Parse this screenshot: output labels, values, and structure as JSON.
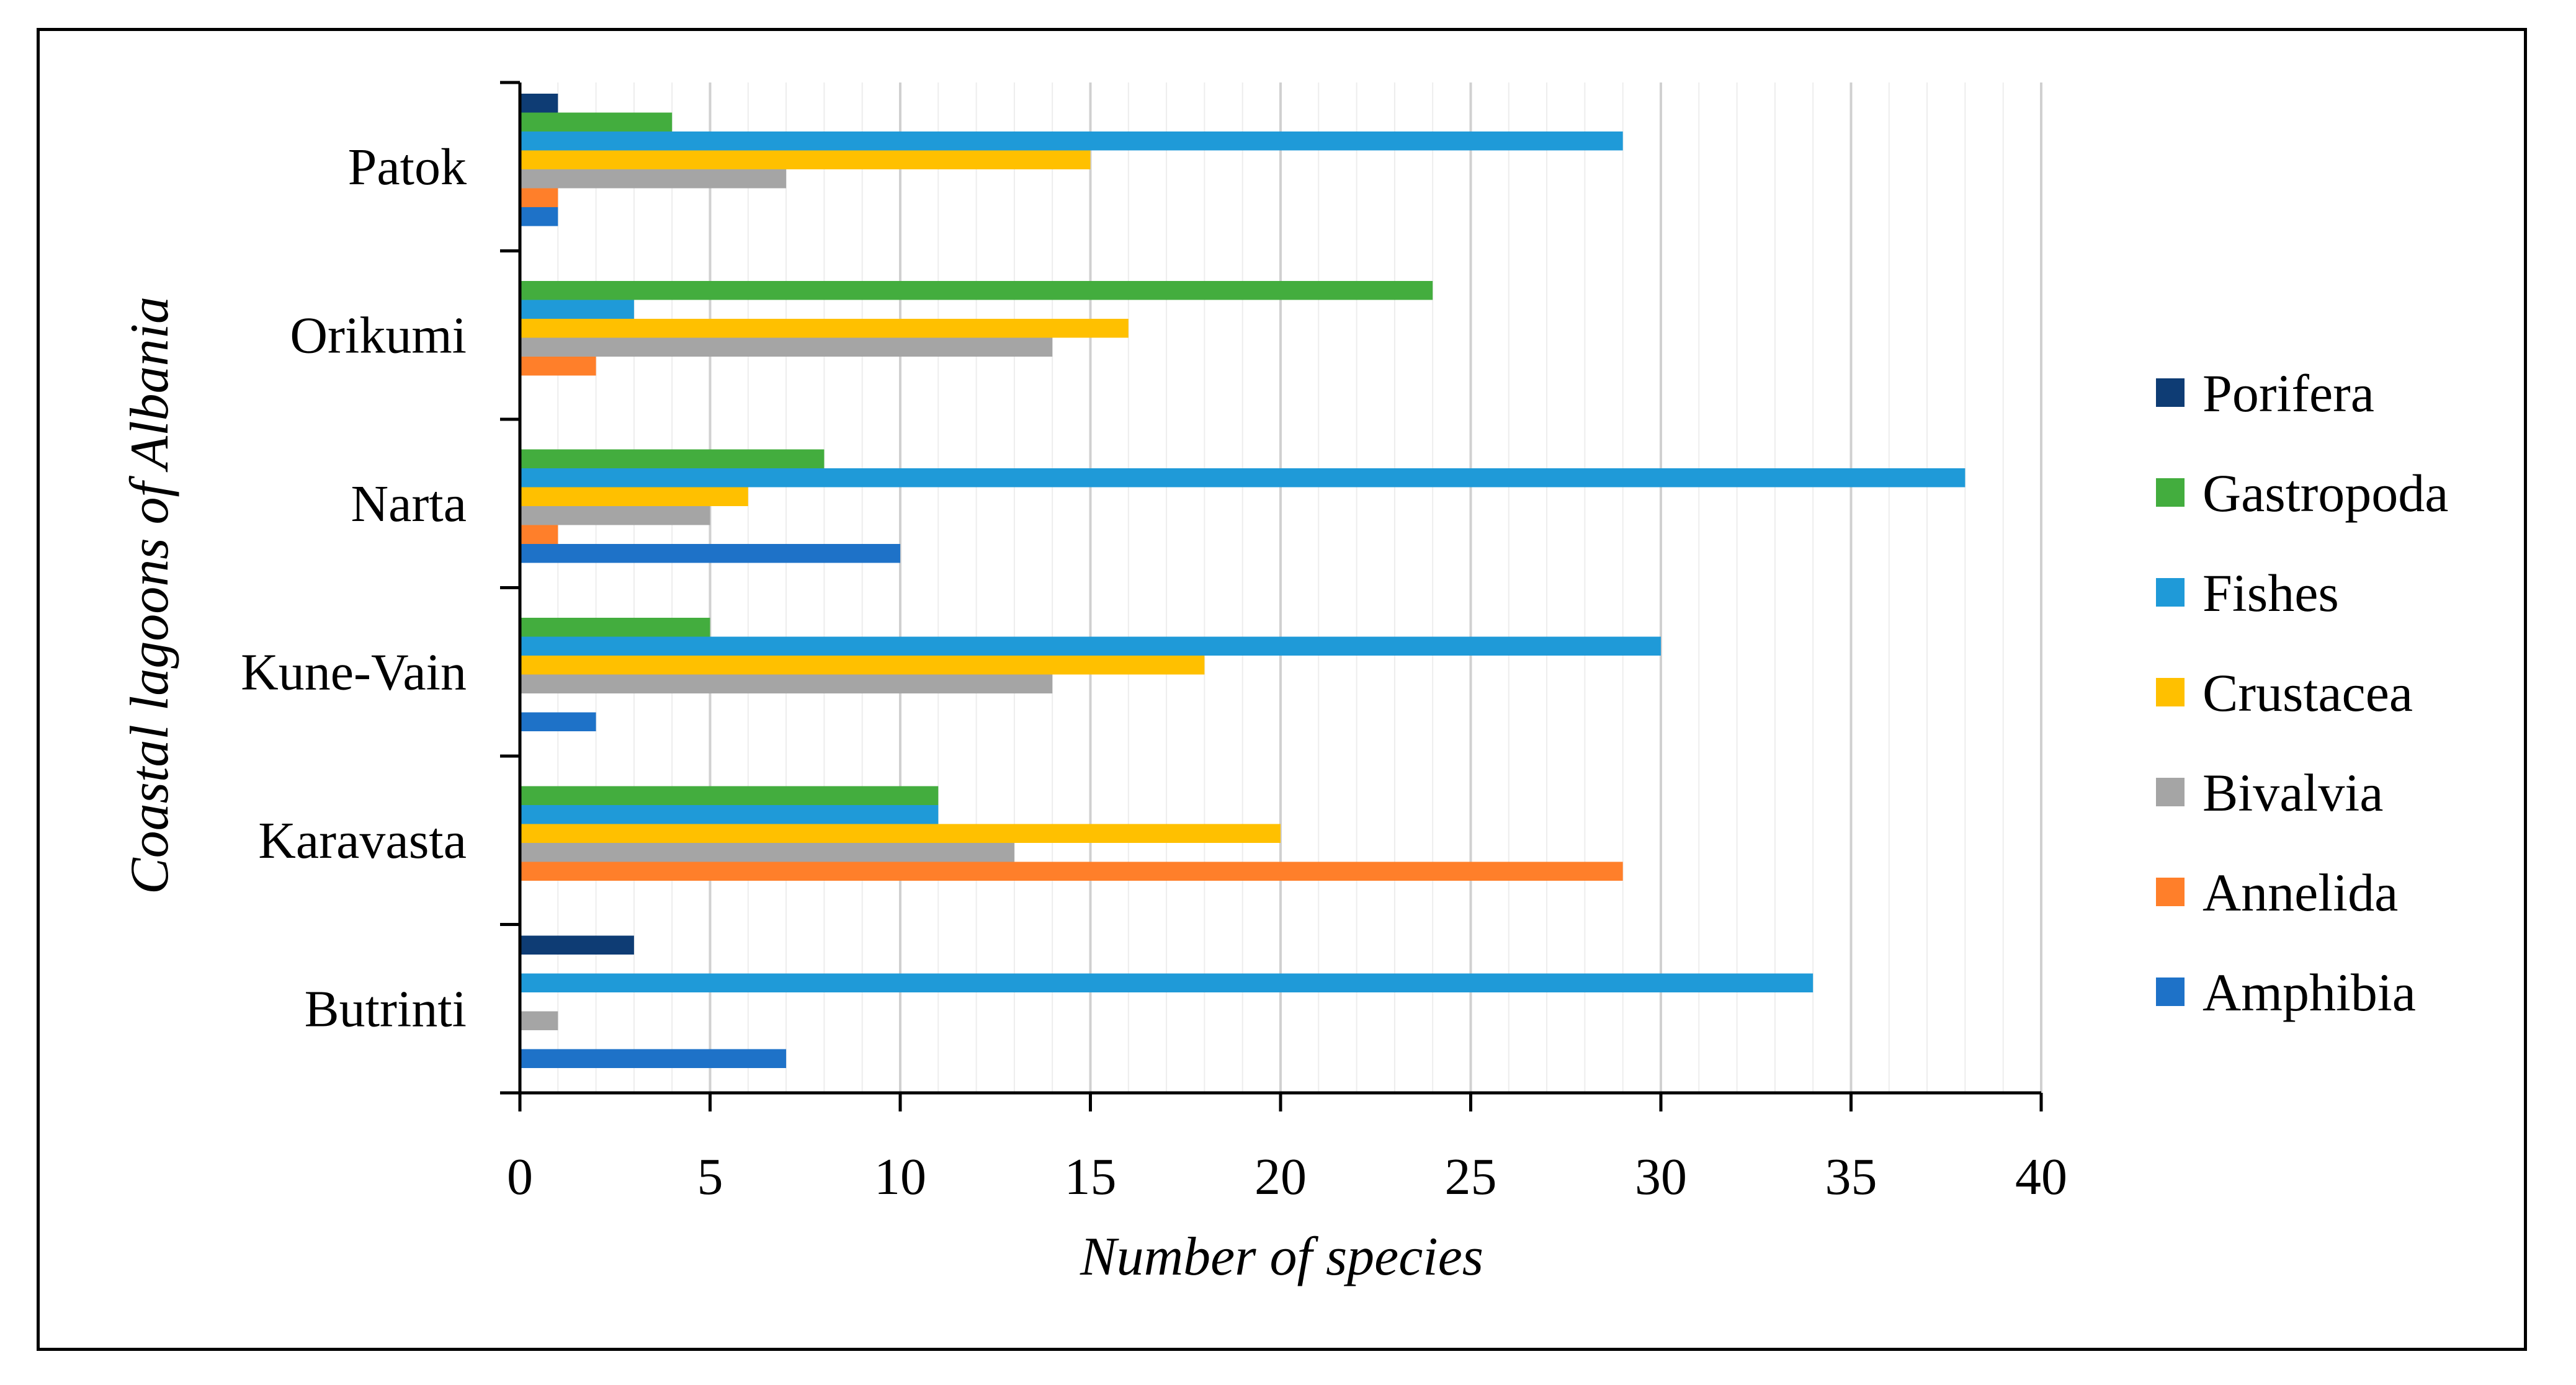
{
  "chart_data": {
    "type": "bar",
    "orientation": "horizontal",
    "title": "",
    "xlabel": "Number of species",
    "ylabel": "Coastal lagoons of Albania",
    "xlim": [
      0,
      40
    ],
    "xticks": [
      0,
      5,
      10,
      15,
      20,
      25,
      30,
      35,
      40
    ],
    "grid": "vertical major and minor",
    "legend_position": "right",
    "categories": [
      "Patok",
      "Orikumi",
      "Narta",
      "Kune-Vain",
      "Karavasta",
      "Butrinti"
    ],
    "series": [
      {
        "name": "Porifera",
        "color": "#0e3c74",
        "values": [
          1,
          0,
          0,
          0,
          0,
          3
        ]
      },
      {
        "name": "Gastropoda",
        "color": "#43ad3e",
        "values": [
          4,
          24,
          8,
          5,
          11,
          0
        ]
      },
      {
        "name": "Fishes",
        "color": "#1f9ad8",
        "values": [
          29,
          3,
          38,
          30,
          11,
          34
        ]
      },
      {
        "name": "Crustacea",
        "color": "#ffc000",
        "values": [
          15,
          16,
          6,
          18,
          20,
          0
        ]
      },
      {
        "name": "Bivalvia",
        "color": "#a5a5a5",
        "values": [
          7,
          14,
          5,
          14,
          13,
          1
        ]
      },
      {
        "name": "Annelida",
        "color": "#ff7f2a",
        "values": [
          1,
          2,
          1,
          0,
          29,
          0
        ]
      },
      {
        "name": "Amphibia",
        "color": "#1e72c8",
        "values": [
          1,
          0,
          10,
          2,
          0,
          7
        ]
      }
    ]
  }
}
